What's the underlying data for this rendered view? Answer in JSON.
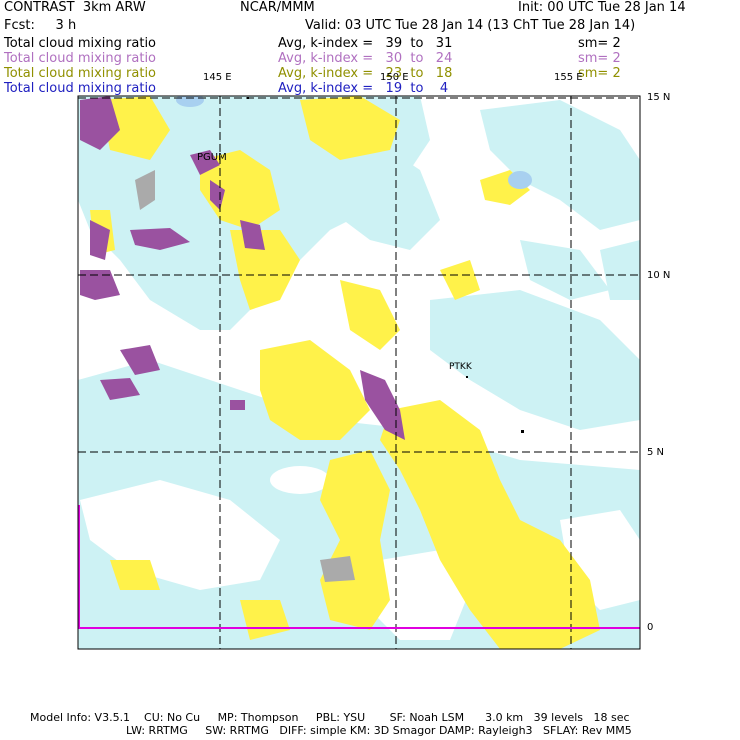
{
  "header": {
    "title": "CONTRAST  3km ARW",
    "org": "NCAR/MMM",
    "init": "Init: 00 UTC Tue 28 Jan 14",
    "fcst": "Fcst:     3 h",
    "valid": "Valid: 03 UTC Tue 28 Jan 14 (13 ChT Tue 28 Jan 14)"
  },
  "legend": [
    {
      "field": "Total cloud mixing ratio",
      "range": "Avg, k-index =   39  to   31",
      "sm": "sm= 2",
      "color": "#000000"
    },
    {
      "field": "Total cloud mixing ratio",
      "range": "Avg, k-index =   30  to   24",
      "sm": "sm= 2",
      "color": "#b070c0"
    },
    {
      "field": "Total cloud mixing ratio",
      "range": "Avg, k-index =   23  to   18",
      "sm": "sm= 2",
      "color": "#909000"
    },
    {
      "field": "Total cloud mixing ratio",
      "range": "Avg, k-index =   19  to    4",
      "sm": "",
      "color": "#2020c0"
    }
  ],
  "map": {
    "lon_labels": [
      "145 E",
      "150 E",
      "155 E"
    ],
    "lat_labels": [
      "15 N",
      "10 N",
      "5 N",
      "0"
    ],
    "stations": [
      "PGUM",
      "PTKK"
    ],
    "colors": {
      "light_cyan": "#cdf2f4",
      "yellow": "#fff24a",
      "purple": "#9a52a0",
      "gray": "#aaaaaa",
      "blue": "#a8d0f0",
      "magenta": "#e000e0"
    }
  },
  "footer": {
    "line1": "Model Info: V3.5.1    CU: No Cu     MP: Thompson     PBL: YSU       SF: Noah LSM      3.0 km   39 levels   18 sec",
    "line2": "LW: RRTMG     SW: RRTMG   DIFF: simple KM: 3D Smagor DAMP: Rayleigh3   SFLAY: Rev MM5"
  }
}
